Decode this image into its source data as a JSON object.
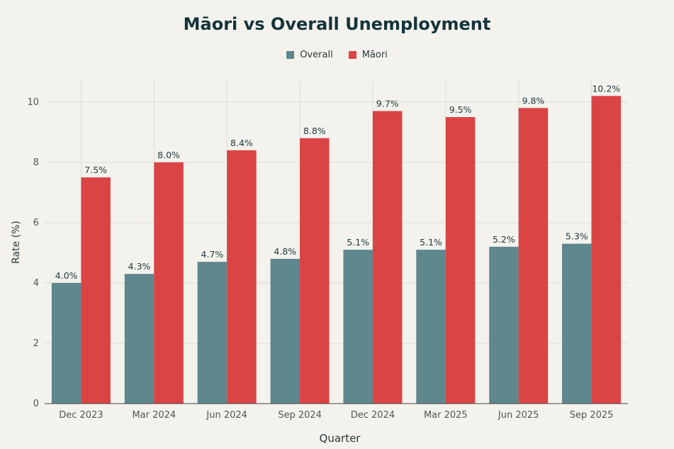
{
  "chart_data": {
    "type": "bar",
    "title": "Māori vs Overall Unemployment",
    "xlabel": "Quarter",
    "ylabel": "Rate (%)",
    "categories": [
      "Dec 2023",
      "Mar 2024",
      "Jun 2024",
      "Sep 2024",
      "Dec 2024",
      "Mar 2025",
      "Jun 2025",
      "Sep 2025"
    ],
    "series": [
      {
        "name": "Overall",
        "color": "#5e878e",
        "values": [
          4.0,
          4.3,
          4.7,
          4.8,
          5.1,
          5.1,
          5.2,
          5.3
        ],
        "labels": [
          "4.0%",
          "4.3%",
          "4.7%",
          "4.8%",
          "5.1%",
          "5.1%",
          "5.2%",
          "5.3%"
        ]
      },
      {
        "name": "Māori",
        "color": "#db4445",
        "values": [
          7.5,
          8.0,
          8.4,
          8.8,
          9.7,
          9.5,
          9.8,
          10.2
        ],
        "labels": [
          "7.5%",
          "8.0%",
          "8.4%",
          "8.8%",
          "9.7%",
          "9.5%",
          "9.8%",
          "10.2%"
        ]
      }
    ],
    "ylim": [
      0,
      10.7
    ],
    "yticks": [
      0,
      2,
      4,
      6,
      8,
      10
    ],
    "grid": true,
    "legend_position": "top-center"
  }
}
